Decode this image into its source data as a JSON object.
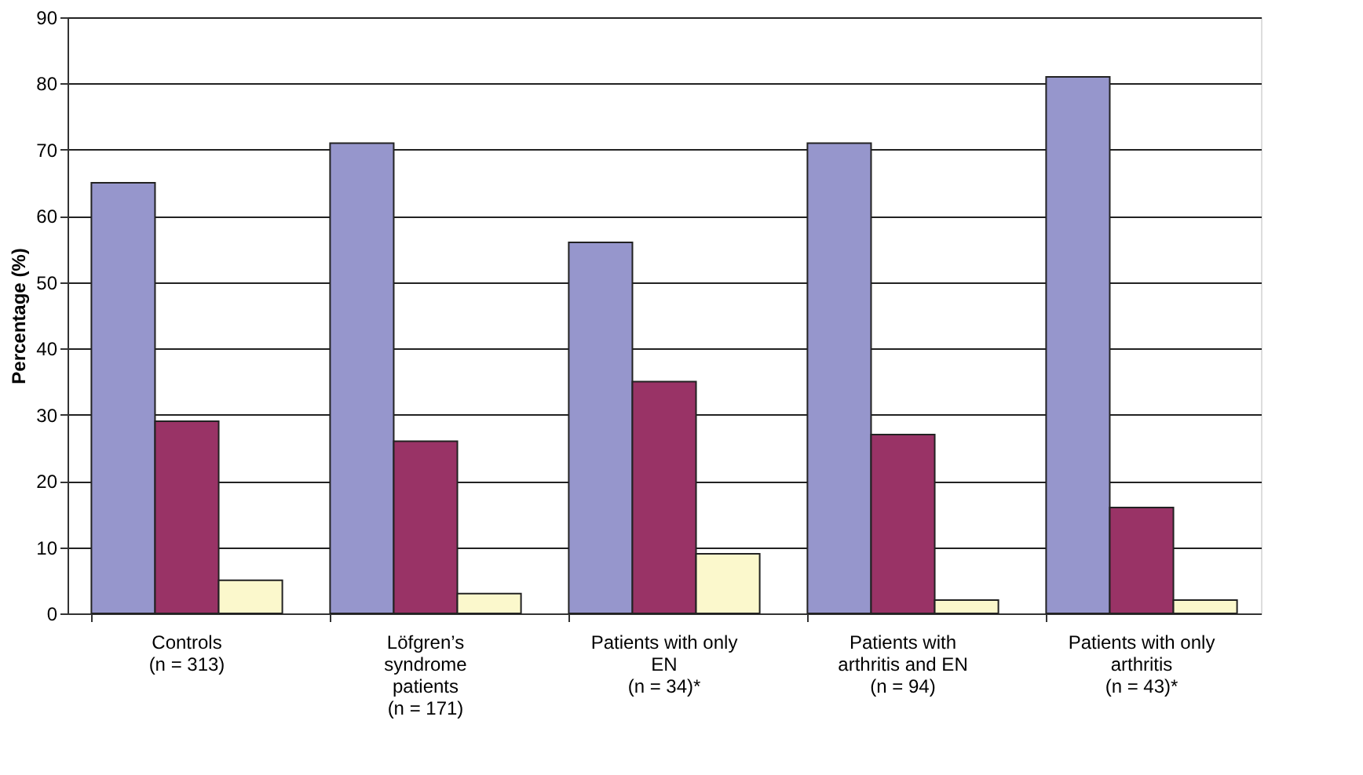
{
  "chart_data": {
    "type": "bar",
    "ylabel": "Percentage (%)",
    "categories": [
      "Controls\n(n = 313)",
      "Löfgren’s\nsyndrome\npatients\n(n = 171)",
      "Patients with only\nEN\n(n = 34)*",
      "Patients with\narthritis and EN\n(n = 94)",
      "Patients with only\narthritis\n(n = 43)*"
    ],
    "series": [
      {
        "color": "#9696cc",
        "values": [
          65,
          71,
          56,
          71,
          81
        ]
      },
      {
        "color": "#993366",
        "values": [
          29,
          26,
          35,
          27,
          16
        ]
      },
      {
        "color": "#fbf8cc",
        "values": [
          5,
          3,
          9,
          2,
          2
        ]
      }
    ],
    "ylim": [
      0,
      90
    ],
    "yticks": [
      0,
      10,
      20,
      30,
      40,
      50,
      60,
      70,
      80,
      90
    ],
    "grid": "y",
    "legend": false
  }
}
